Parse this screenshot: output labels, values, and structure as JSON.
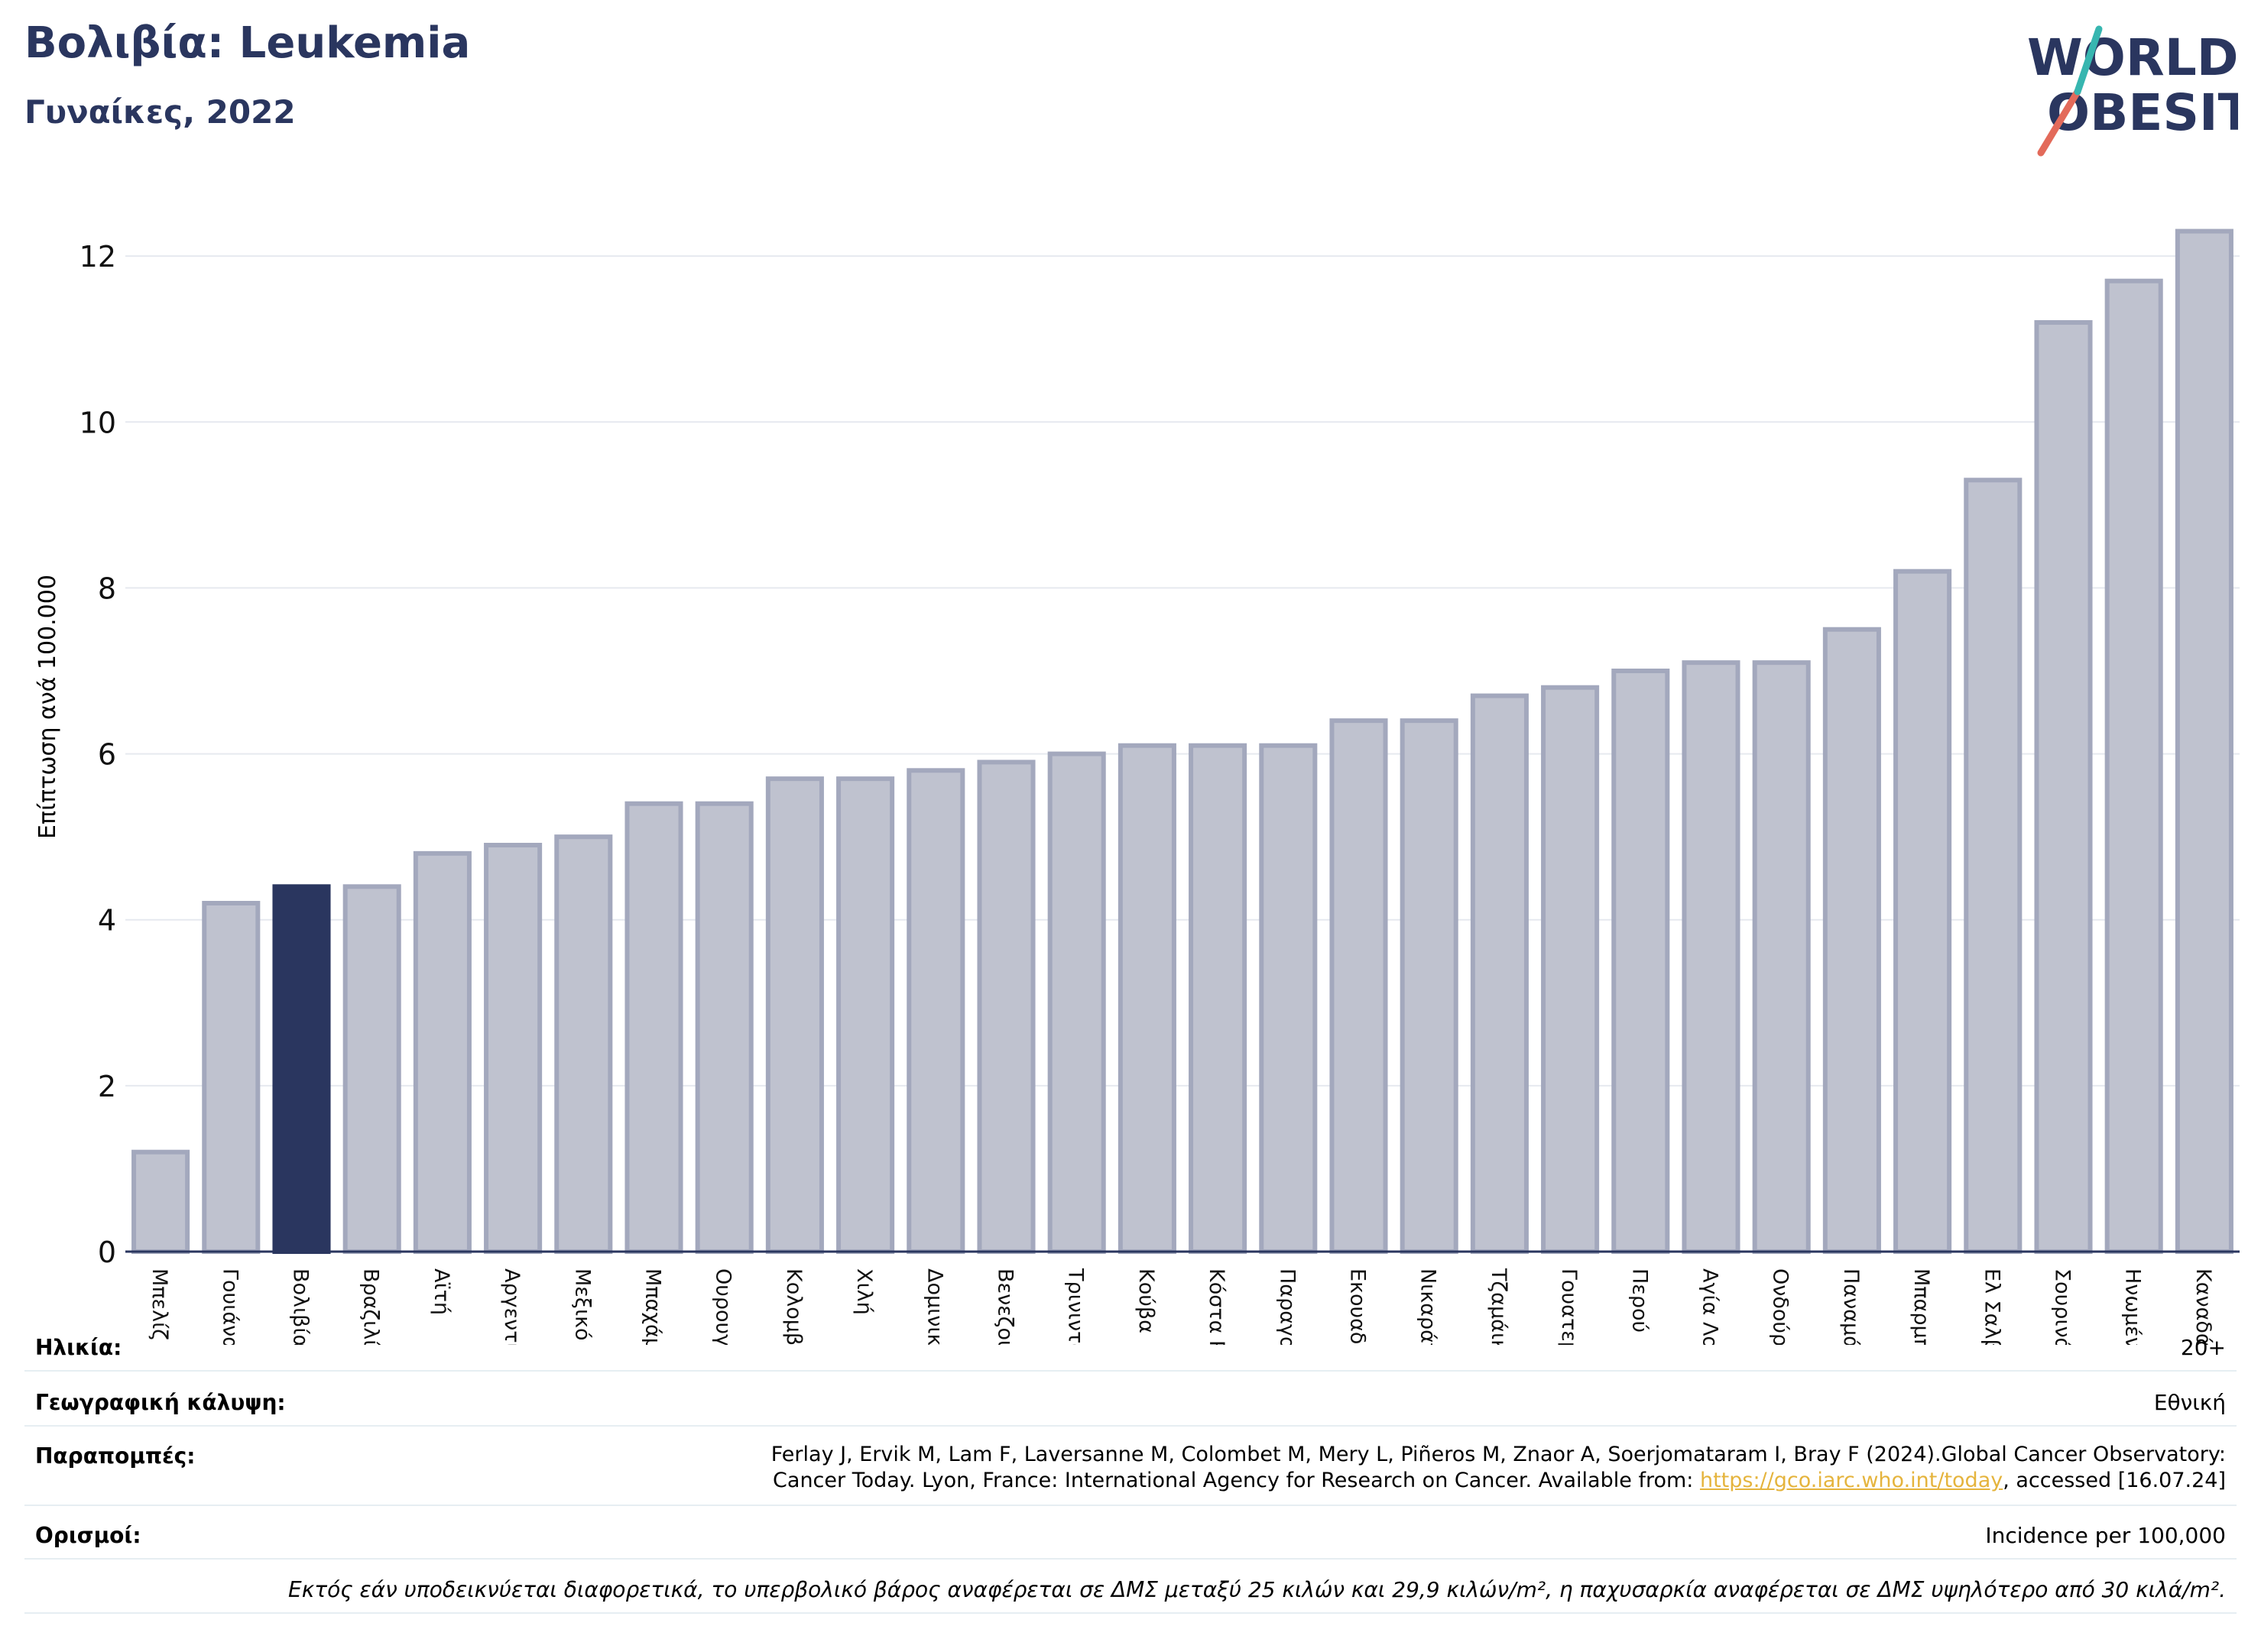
{
  "title": "Βολιβία: Leukemia",
  "subtitle": "Γυναίκες, 2022",
  "logo": {
    "line1": "WORLD",
    "line2": "OBESITY"
  },
  "colors": {
    "highlight": "#2a365f",
    "bar": "#bfc2cf",
    "bar_edge": "#a3a8bd",
    "axis": "#2a365f",
    "grid": "#e6e9ef",
    "link": "#e5b43d"
  },
  "chart_data": {
    "type": "bar",
    "ylabel": "Επίπτωση ανά 100.000",
    "ylim": [
      0,
      12.6
    ],
    "yticks": [
      0,
      2,
      4,
      6,
      8,
      10,
      12
    ],
    "highlight": "Βολιβία",
    "categories": [
      "Μπελίζ",
      "Γουιάνα",
      "Βολιβία",
      "Βραζιλία",
      "Αϊτή",
      "Αργεντινή",
      "Μεξικό",
      "Μπαχάμες",
      "Ουρουγουάη",
      "Κολομβία",
      "Χιλή",
      "Δομινικανή Δημοκρατία",
      "Βενεζουέλα",
      "Τρινιντάντ και Τομπάγκο",
      "Κούβα",
      "Κόστα Ρίκα",
      "Παραγουάη",
      "Εκουαδόρ",
      "Νικαράγουα",
      "Τζαμάικα",
      "Γουατεμάλα",
      "Περού",
      "Αγία Λουκία",
      "Ονδούρα",
      "Παναμάς",
      "Μπαρμπάντος",
      "Ελ Σαλβαδόρ",
      "Σουρινάμ",
      "Ηνωμένες Πολιτείες",
      "Καναδάς"
    ],
    "values": [
      1.2,
      4.2,
      4.4,
      4.4,
      4.8,
      4.9,
      5.0,
      5.4,
      5.4,
      5.7,
      5.7,
      5.8,
      5.9,
      6.0,
      6.1,
      6.1,
      6.1,
      6.4,
      6.4,
      6.7,
      6.8,
      7.0,
      7.1,
      7.1,
      7.5,
      8.2,
      9.3,
      11.2,
      11.7,
      12.3
    ]
  },
  "meta": {
    "age_label": "Ηλικία:",
    "age_value": "20+",
    "coverage_label": "Γεωγραφική κάλυψη:",
    "coverage_value": "Εθνική",
    "refs_label": "Παραπομπές:",
    "refs_line1": "Ferlay J, Ervik M, Lam F, Laversanne M, Colombet M, Mery L, Piñeros M, Znaor A, Soerjomataram I, Bray F (2024).Global Cancer Observatory:",
    "refs_line2_pre": "Cancer Today. Lyon, France: International Agency for Research on Cancer. Available from: ",
    "refs_link": "https://gco.iarc.who.int/today",
    "refs_line2_post": ", accessed [16.07.24]",
    "def_label": "Ορισμοί:",
    "def_value": "Incidence per 100,000"
  },
  "footnote": "Εκτός εάν υποδεικνύεται διαφορετικά, το υπερβολικό βάρος αναφέρεται σε ΔΜΣ μεταξύ 25 κιλών και 29,9 κιλών/m², η παχυσαρκία αναφέρεται σε ΔΜΣ υψηλότερο από 30 κιλά/m²."
}
